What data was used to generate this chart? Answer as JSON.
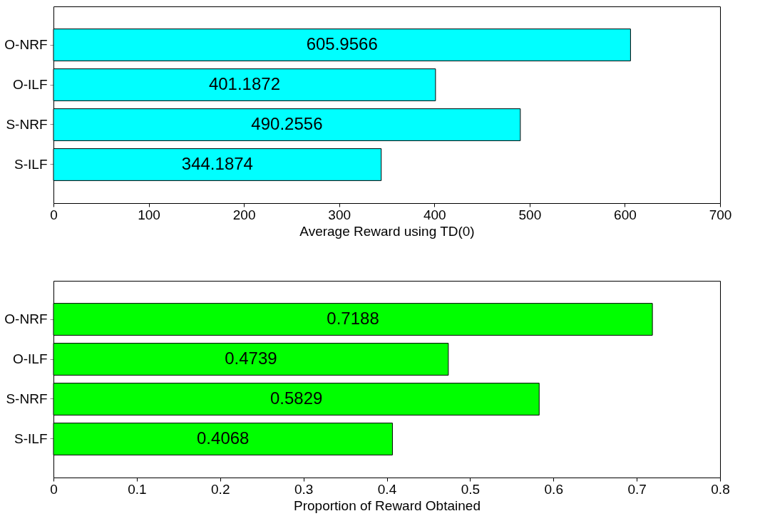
{
  "chart_data": [
    {
      "type": "bar",
      "orientation": "horizontal",
      "categories": [
        "O-NRF",
        "O-ILF",
        "S-NRF",
        "S-ILF"
      ],
      "values": [
        605.9566,
        401.1872,
        490.2556,
        344.1874
      ],
      "color": "#00ffff",
      "xlim": [
        0,
        700
      ],
      "xticks": [
        0,
        100,
        200,
        300,
        400,
        500,
        600,
        700
      ],
      "xlabel": "Average Reward using TD(0)",
      "data_labels": true
    },
    {
      "type": "bar",
      "orientation": "horizontal",
      "categories": [
        "O-NRF",
        "O-ILF",
        "S-NRF",
        "S-ILF"
      ],
      "values": [
        0.7188,
        0.4739,
        0.5829,
        0.4068
      ],
      "color": "#00ff00",
      "xlim": [
        0,
        0.8
      ],
      "xticks": [
        0,
        0.1,
        0.2,
        0.3,
        0.4,
        0.5,
        0.6,
        0.7,
        0.8
      ],
      "xlabel": "Proportion of Reward Obtained",
      "data_labels": true
    }
  ]
}
